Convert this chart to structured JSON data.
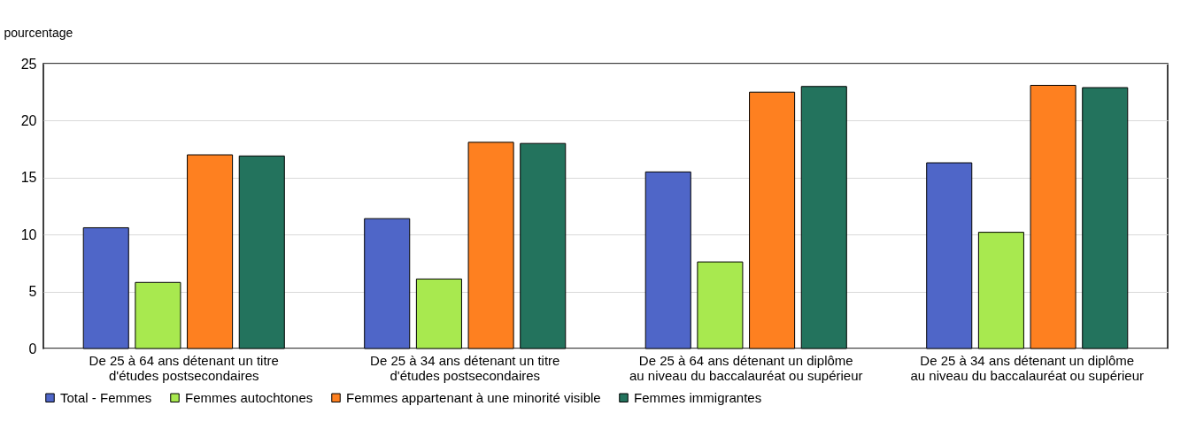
{
  "chart_data": {
    "type": "bar",
    "ylabel": "pourcentage",
    "categories": [
      "De 25 à 64 ans détenant un titre\nd'études postsecondaires",
      "De 25 à 34 ans détenant un titre\nd'études postsecondaires",
      "De 25 à 64 ans détenant un diplôme\nau niveau du baccalauréat ou supérieur",
      "De 25 à 34 ans détenant un diplôme\nau niveau du baccalauréat ou supérieur"
    ],
    "series": [
      {
        "name": "Total - Femmes",
        "color": "#4f66c8",
        "values": [
          10.6,
          11.4,
          15.5,
          16.3
        ]
      },
      {
        "name": "Femmes autochtones",
        "color": "#a8e94f",
        "values": [
          5.8,
          6.1,
          7.6,
          10.2
        ]
      },
      {
        "name": "Femmes appartenant à une minorité visible",
        "color": "#fe8020",
        "values": [
          17.0,
          18.1,
          22.5,
          23.1
        ]
      },
      {
        "name": "Femmes immigrantes",
        "color": "#23735d",
        "values": [
          16.9,
          18.0,
          23.0,
          22.9
        ]
      }
    ],
    "ylim": [
      0,
      25
    ],
    "yticks": [
      0,
      5,
      10,
      15,
      20,
      25
    ],
    "grid": "y",
    "legend": "bottom"
  }
}
